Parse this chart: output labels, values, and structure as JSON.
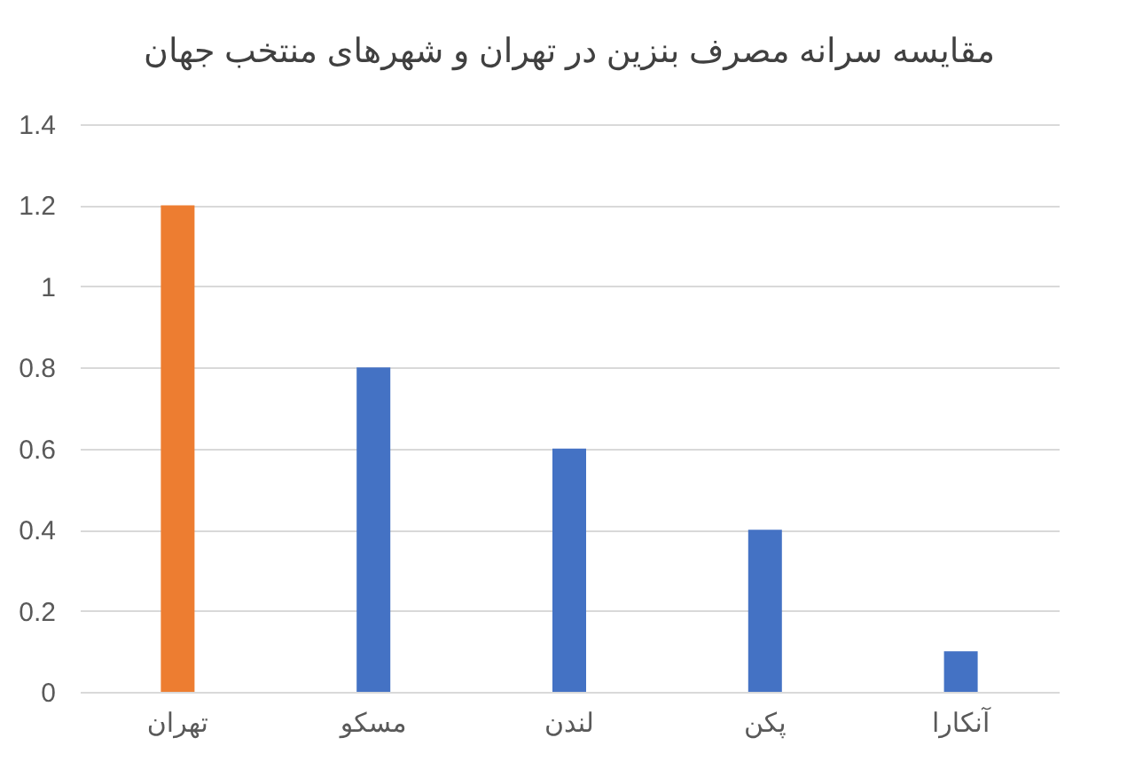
{
  "chart_data": {
    "type": "bar",
    "title": "مقایسه سرانه مصرف بنزین در تهران و شهرهای منتخب جهان",
    "categories": [
      "تهران",
      "مسکو",
      "لندن",
      "پکن",
      "آنکارا"
    ],
    "values": [
      1.2,
      0.8,
      0.6,
      0.4,
      0.1
    ],
    "colors": [
      "#ed7d31",
      "#4472c4",
      "#4472c4",
      "#4472c4",
      "#4472c4"
    ],
    "ylim": [
      0,
      1.4
    ],
    "yticks": [
      0,
      0.2,
      0.4,
      0.6,
      0.8,
      1,
      1.2,
      1.4
    ],
    "grid": "y"
  }
}
